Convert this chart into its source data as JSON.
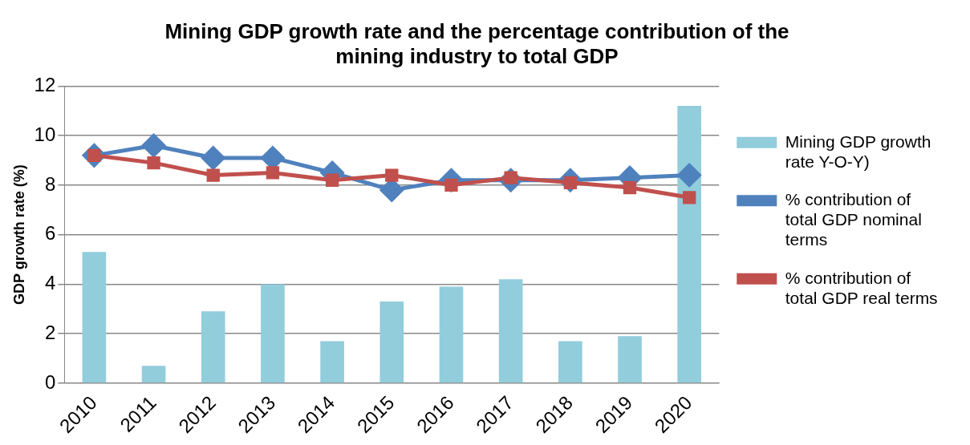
{
  "chart_data": {
    "type": "bar",
    "title": "Mining GDP growth rate and the percentage contribution of the mining industry to total GDP",
    "ylabel": "GDP growth rate (%)",
    "categories": [
      "2010",
      "2011",
      "2012",
      "2013",
      "2014",
      "2015",
      "2016",
      "2017",
      "2018",
      "2019",
      "2020"
    ],
    "series": [
      {
        "name": "Mining GDP growth rate Y-O-Y)",
        "color": "#92cddc",
        "values": [
          5.3,
          0.7,
          2.9,
          4.0,
          1.7,
          3.3,
          3.9,
          4.2,
          1.7,
          1.9,
          11.2
        ]
      },
      {
        "name": "% contribution of total GDP nominal terms",
        "type": "line",
        "color": "#4f81bd",
        "marker": "diamond",
        "values": [
          9.2,
          9.6,
          9.1,
          9.1,
          8.5,
          7.8,
          8.2,
          8.2,
          8.2,
          8.3,
          8.4
        ]
      },
      {
        "name": "% contribution of total GDP real terms",
        "type": "line",
        "color": "#c0504d",
        "marker": "square",
        "values": [
          9.2,
          8.9,
          8.4,
          8.5,
          8.2,
          8.4,
          8.0,
          8.3,
          8.1,
          7.9,
          7.5
        ]
      }
    ],
    "ylim": [
      0,
      12
    ],
    "yticks": [
      0,
      2,
      4,
      6,
      8,
      10,
      12
    ],
    "grid": "y",
    "legend": "right"
  }
}
